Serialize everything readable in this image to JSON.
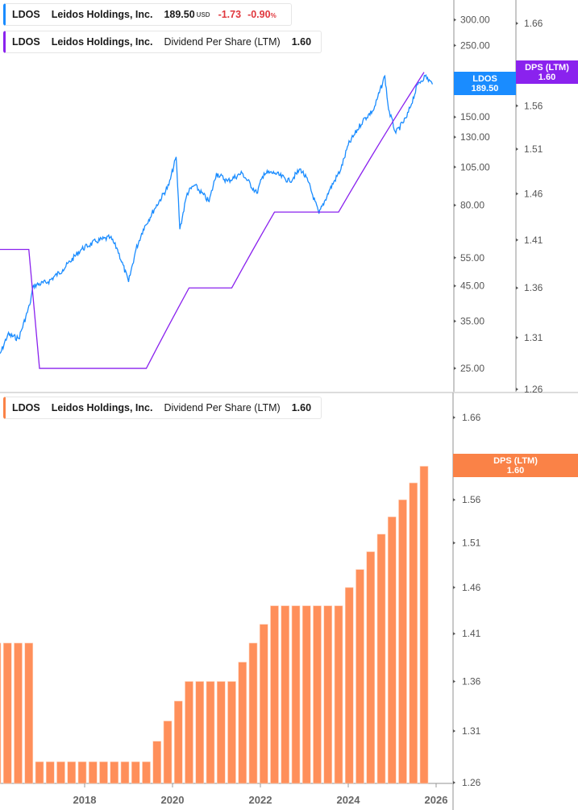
{
  "colors": {
    "price": "#1a8cff",
    "dps_line": "#8a22ee",
    "bars": "#ff8f5a",
    "bar_tag": "#fa8247"
  },
  "legend_price": {
    "ticker": "LDOS",
    "company": "Leidos Holdings, Inc.",
    "price": "189.50",
    "currency": "USD",
    "change": "-1.73",
    "change_pct": "-0.90",
    "pct_sign": "%"
  },
  "legend_dps": {
    "ticker": "LDOS",
    "company": "Leidos Holdings, Inc.",
    "metric": "Dividend Per Share (LTM)",
    "value": "1.60"
  },
  "legend_bottom": {
    "ticker": "LDOS",
    "company": "Leidos Holdings, Inc.",
    "metric": "Dividend Per Share (LTM)",
    "value": "1.60"
  },
  "tags": {
    "price_name": "LDOS",
    "price_value": "189.50",
    "dps_name": "DPS (LTM)",
    "dps_value": "1.60",
    "bottom_name": "DPS (LTM)",
    "bottom_value": "1.60"
  },
  "chart_data": [
    {
      "type": "line",
      "scale": "log",
      "legend_position": "top-left",
      "grid": false,
      "series": [
        {
          "name": "LDOS",
          "points": [
            [
              "2016-01",
              26.0
            ],
            [
              "2016-04",
              31.8
            ],
            [
              "2016-07",
              30.9
            ],
            [
              "2016-10",
              39.3
            ],
            [
              "2016-11",
              45.1
            ],
            [
              "2017-03",
              46.3
            ],
            [
              "2017-07",
              50.5
            ],
            [
              "2017-12",
              58.3
            ],
            [
              "2018-04",
              61.8
            ],
            [
              "2018-08",
              63.6
            ],
            [
              "2018-10",
              58.3
            ],
            [
              "2019-01",
              46.3
            ],
            [
              "2019-03",
              58.3
            ],
            [
              "2019-05",
              67.4
            ],
            [
              "2019-08",
              77.6
            ],
            [
              "2019-12",
              92.3
            ],
            [
              "2020-02",
              112.9
            ],
            [
              "2020-03",
              67.4
            ],
            [
              "2020-05",
              87.1
            ],
            [
              "2020-07",
              92.3
            ],
            [
              "2020-11",
              82.1
            ],
            [
              "2021-01",
              100.6
            ],
            [
              "2021-04",
              94.9
            ],
            [
              "2021-08",
              100.6
            ],
            [
              "2021-12",
              87.1
            ],
            [
              "2022-02",
              100.6
            ],
            [
              "2022-05",
              100.6
            ],
            [
              "2022-09",
              94.9
            ],
            [
              "2022-12",
              103.5
            ],
            [
              "2023-02",
              94.9
            ],
            [
              "2023-05",
              75.3
            ],
            [
              "2023-08",
              89.7
            ],
            [
              "2023-11",
              103.5
            ],
            [
              "2024-01",
              122.9
            ],
            [
              "2024-05",
              146.3
            ],
            [
              "2024-08",
              158.4
            ],
            [
              "2024-11",
              201.0
            ],
            [
              "2024-12",
              158.4
            ],
            [
              "2025-02",
              133.9
            ],
            [
              "2025-05",
              150.1
            ],
            [
              "2025-08",
              189.4
            ],
            [
              "2025-10",
              201.0
            ],
            [
              "2025-12",
              189.5
            ]
          ]
        }
      ],
      "y_ticks": [
        "300.00",
        "250.00",
        "200.00",
        "150.00",
        "130.00",
        "105.00",
        "80.00",
        "55.00",
        "45.00",
        "35.00",
        "25.00"
      ],
      "y2_ticks": [
        "1.66",
        "1.61",
        "1.56",
        "1.51",
        "1.46",
        "1.41",
        "1.36",
        "1.31",
        "1.26"
      ],
      "dps_series_name": "DPS (LTM)"
    },
    {
      "type": "bar",
      "scale": "log",
      "legend_position": "top-left",
      "grid": false,
      "x_ticks": [
        "2018",
        "2020",
        "2022",
        "2024",
        "2026"
      ],
      "y_ticks": [
        "1.66",
        "1.61",
        "1.56",
        "1.51",
        "1.46",
        "1.41",
        "1.36",
        "1.31",
        "1.26"
      ],
      "categories": [
        "2016 Q1",
        "2016 Q2",
        "2016 Q3",
        "2016 Q4",
        "2017 Q1",
        "2017 Q2",
        "2017 Q3",
        "2017 Q4",
        "2018 Q1",
        "2018 Q2",
        "2018 Q3",
        "2018 Q4",
        "2019 Q1",
        "2019 Q2",
        "2019 Q3",
        "2019 Q4",
        "2020 Q1",
        "2020 Q2",
        "2020 Q3",
        "2020 Q4",
        "2021 Q1",
        "2021 Q2",
        "2021 Q3",
        "2021 Q4",
        "2022 Q1",
        "2022 Q2",
        "2022 Q3",
        "2022 Q4",
        "2023 Q1",
        "2023 Q2",
        "2023 Q3",
        "2023 Q4",
        "2024 Q1",
        "2024 Q2",
        "2024 Q3",
        "2024 Q4",
        "2025 Q1",
        "2025 Q2",
        "2025 Q3",
        "2025 Q4",
        "2026 Q1"
      ],
      "series": [
        {
          "name": "DPS (LTM)",
          "values": [
            1.4,
            1.4,
            1.4,
            1.4,
            1.28,
            1.28,
            1.28,
            1.28,
            1.28,
            1.28,
            1.28,
            1.28,
            1.28,
            1.28,
            1.28,
            1.3,
            1.32,
            1.34,
            1.36,
            1.36,
            1.36,
            1.36,
            1.36,
            1.38,
            1.4,
            1.42,
            1.44,
            1.44,
            1.44,
            1.44,
            1.44,
            1.44,
            1.44,
            1.46,
            1.48,
            1.5,
            1.52,
            1.54,
            1.56,
            1.58,
            1.6
          ]
        }
      ]
    }
  ]
}
